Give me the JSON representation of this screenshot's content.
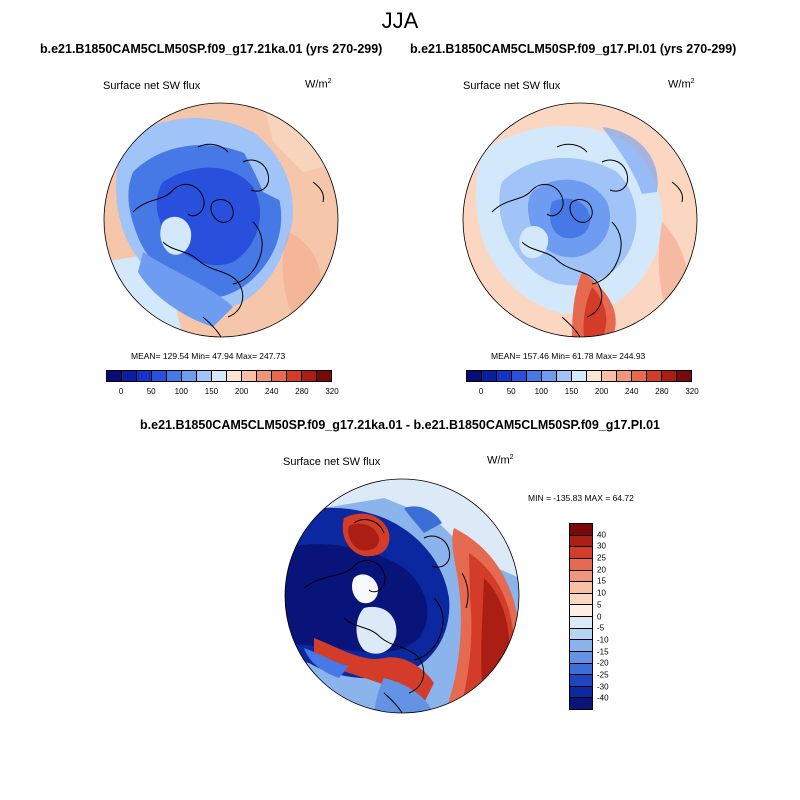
{
  "title": "JJA",
  "panels": [
    {
      "case": "b.e21.B1850CAM5CLM50SP.f09_g17.21ka.01 (yrs 270-299)",
      "variable": "Surface net SW flux",
      "units_base": "W/m",
      "units_exp": "2",
      "stats": "MEAN= 129.54  Min=  47.94  Max= 247.73"
    },
    {
      "case": "b.e21.B1850CAM5CLM50SP.f09_g17.PI.01 (yrs 270-299)",
      "variable": "Surface net SW flux",
      "units_base": "W/m",
      "units_exp": "2",
      "stats": "MEAN= 157.46  Min=  61.78  Max= 244.93"
    }
  ],
  "diff": {
    "case": "b.e21.B1850CAM5CLM50SP.f09_g17.21ka.01 - b.e21.B1850CAM5CLM50SP.f09_g17.PI.01",
    "variable": "Surface net SW flux",
    "units_base": "W/m",
    "units_exp": "2",
    "stats": "MIN = -135.83 MAX =  64.72"
  },
  "colorbar_top": {
    "labels": [
      "0",
      "50",
      "100",
      "150",
      "200",
      "240",
      "280",
      "320"
    ],
    "colors": [
      "#0a0a78",
      "#0a1ea0",
      "#1432c8",
      "#2850dc",
      "#4678e6",
      "#6e9cf0",
      "#a0c4f8",
      "#d4e8fc",
      "#fde4d4",
      "#f8c0a4",
      "#f0967a",
      "#e66a50",
      "#d23c28",
      "#aa1e14",
      "#7a0a0a"
    ]
  },
  "colorbar_diff": {
    "labels": [
      "40",
      "30",
      "25",
      "20",
      "15",
      "10",
      "5",
      "0",
      "-5",
      "-10",
      "-15",
      "-20",
      "-25",
      "-30",
      "-40"
    ],
    "colors": [
      "#7a0a0a",
      "#aa1e14",
      "#d23c28",
      "#e66a50",
      "#f0967a",
      "#f8c0a4",
      "#fbd6c0",
      "#fdeee4",
      "#dceaf8",
      "#b8d4f4",
      "#8cb4ec",
      "#6492e4",
      "#3c6ed8",
      "#1e46c0",
      "#0c28a0",
      "#08147a"
    ]
  }
}
